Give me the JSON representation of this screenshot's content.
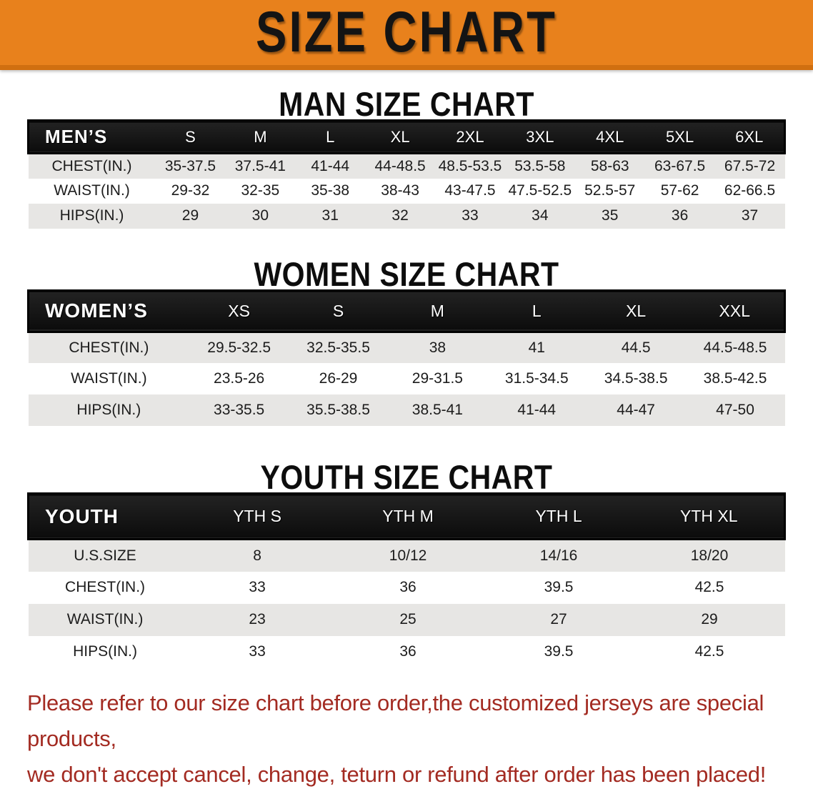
{
  "banner": {
    "title": "SIZE CHART",
    "background_color": "#E8811C",
    "text_color": "#141414"
  },
  "sections": {
    "men": {
      "heading": "MAN SIZE CHART",
      "table": {
        "corner_label": "MEN’S",
        "columns": [
          "S",
          "M",
          "L",
          "XL",
          "2XL",
          "3XL",
          "4XL",
          "5XL",
          "6XL"
        ],
        "rows": [
          {
            "label": "CHEST(IN.)",
            "values": [
              "35-37.5",
              "37.5-41",
              "41-44",
              "44-48.5",
              "48.5-53.5",
              "53.5-58",
              "58-63",
              "63-67.5",
              "67.5-72"
            ]
          },
          {
            "label": "WAIST(IN.)",
            "values": [
              "29-32",
              "32-35",
              "35-38",
              "38-43",
              "43-47.5",
              "47.5-52.5",
              "52.5-57",
              "57-62",
              "62-66.5"
            ]
          },
          {
            "label": "HIPS(IN.)",
            "values": [
              "29",
              "30",
              "31",
              "32",
              "33",
              "34",
              "35",
              "36",
              "37"
            ]
          }
        ]
      }
    },
    "women": {
      "heading": "WOMEN SIZE CHART",
      "table": {
        "corner_label": "WOMEN’S",
        "columns": [
          "XS",
          "S",
          "M",
          "L",
          "XL",
          "XXL"
        ],
        "rows": [
          {
            "label": "CHEST(IN.)",
            "values": [
              "29.5-32.5",
              "32.5-35.5",
              "38",
              "41",
              "44.5",
              "44.5-48.5"
            ]
          },
          {
            "label": "WAIST(IN.)",
            "values": [
              "23.5-26",
              "26-29",
              "29-31.5",
              "31.5-34.5",
              "34.5-38.5",
              "38.5-42.5"
            ]
          },
          {
            "label": "HIPS(IN.)",
            "values": [
              "33-35.5",
              "35.5-38.5",
              "38.5-41",
              "41-44",
              "44-47",
              "47-50"
            ]
          }
        ]
      }
    },
    "youth": {
      "heading": "YOUTH SIZE CHART",
      "table": {
        "corner_label": "YOUTH",
        "columns": [
          "YTH S",
          "YTH M",
          "YTH L",
          "YTH XL"
        ],
        "rows": [
          {
            "label": "U.S.SIZE",
            "values": [
              "8",
              "10/12",
              "14/16",
              "18/20"
            ]
          },
          {
            "label": "CHEST(IN.)",
            "values": [
              "33",
              "36",
              "39.5",
              "42.5"
            ]
          },
          {
            "label": "WAIST(IN.)",
            "values": [
              "23",
              "25",
              "27",
              "29"
            ]
          },
          {
            "label": "HIPS(IN.)",
            "values": [
              "33",
              "36",
              "39.5",
              "42.5"
            ]
          }
        ]
      }
    }
  },
  "table_colors": {
    "header_background": "#141414",
    "header_text": "#FFFFFF",
    "row_alt_background": "#E7E6E4",
    "row_background": "#FFFFFF"
  },
  "disclaimer": {
    "color": "#A32B22",
    "lines": [
      "Please refer to our size chart before order,the customized jerseys are special products,",
      "we don't accept cancel, change, teturn or refund after order has been placed!"
    ]
  }
}
